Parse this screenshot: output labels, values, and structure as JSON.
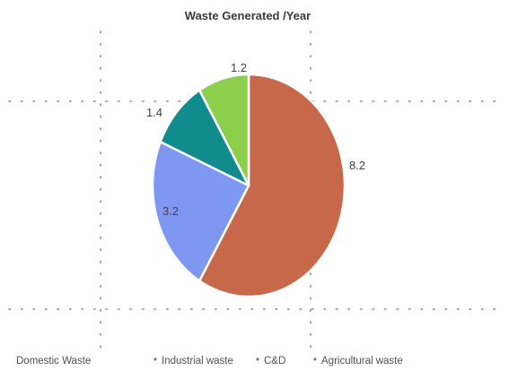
{
  "chart_data": {
    "type": "pie",
    "title": "Waste Generated /Year",
    "categories": [
      "Domestic Waste",
      "Industrial waste",
      "C&D",
      "Agricultural waste"
    ],
    "values": [
      8.2,
      3.2,
      1.4,
      1.2
    ],
    "value_labels": [
      "8.2",
      "3.2",
      "1.4",
      "1.2"
    ],
    "colors": [
      "#C8684A",
      "#7E97F0",
      "#108C8C",
      "#8CCF4D"
    ],
    "legend_position": "bottom",
    "grid": true
  },
  "legend_separator": "•"
}
